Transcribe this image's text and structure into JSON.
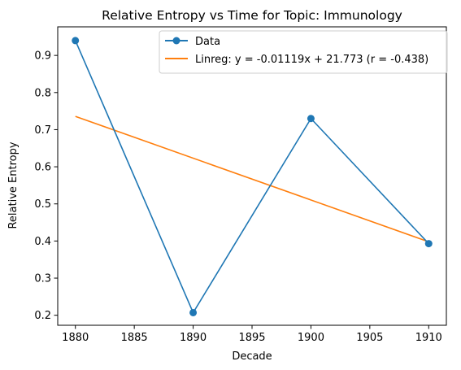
{
  "chart_data": {
    "type": "line",
    "title": "Relative Entropy vs Time for Topic: Immunology",
    "xlabel": "Decade",
    "ylabel": "Relative Entropy",
    "xlim": [
      1878.5,
      1911.5
    ],
    "ylim": [
      0.173,
      0.977
    ],
    "xticks": [
      1880,
      1885,
      1890,
      1895,
      1900,
      1905,
      1910
    ],
    "yticks": [
      0.2,
      0.3,
      0.4,
      0.5,
      0.6,
      0.7,
      0.8,
      0.9
    ],
    "grid": false,
    "legend_position": "upper right",
    "series": [
      {
        "name": "Data",
        "color": "#1f77b4",
        "marker": "circle",
        "x": [
          1880,
          1890,
          1900,
          1910
        ],
        "y": [
          0.94,
          0.207,
          0.73,
          0.393
        ]
      },
      {
        "name": "Linreg: y = -0.01119x + 21.773 (r = -0.438)",
        "color": "#ff7f0e",
        "marker": "none",
        "x": [
          1880,
          1910
        ],
        "y": [
          0.7358,
          0.3979
        ]
      }
    ]
  }
}
